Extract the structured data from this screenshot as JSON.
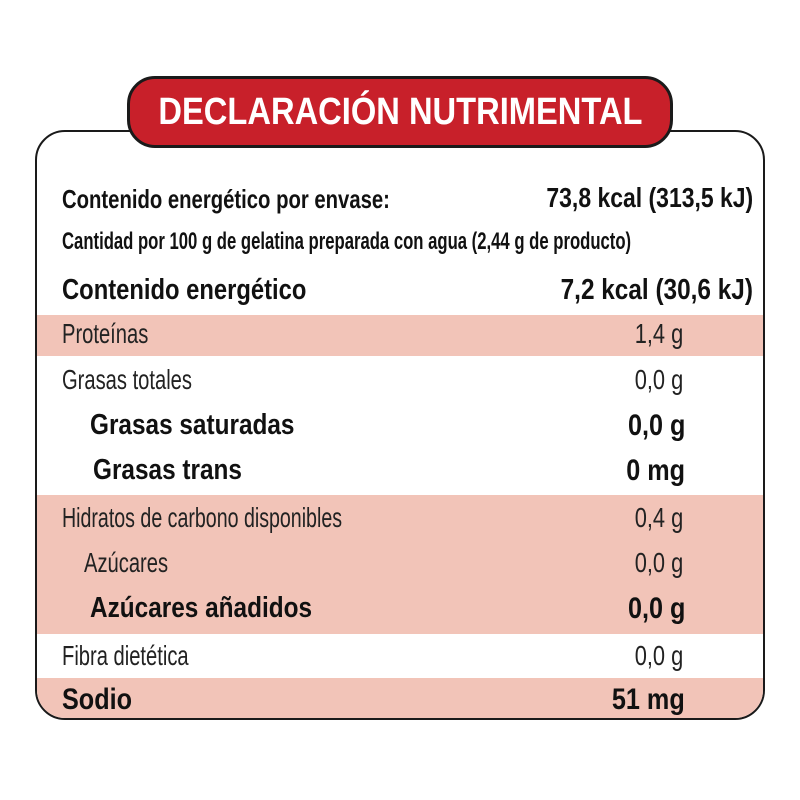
{
  "title": "DECLARACIÓN NUTRIMENTAL",
  "header": {
    "energy_per_container_label": "Contenido energético por envase:",
    "energy_per_container_value": "73,8 kcal (313,5 kJ)",
    "serving_note": "Cantidad por 100 g de gelatina preparada con agua (2,44 g de producto)",
    "energy_label": "Contenido energético",
    "energy_value": "7,2 kcal (30,6 kJ)"
  },
  "rows": [
    {
      "label": "Proteínas",
      "value": "1,4 g",
      "shaded": true,
      "bold": false
    },
    {
      "label": "Grasas totales",
      "value": "0,0 g",
      "shaded": false,
      "bold": false
    },
    {
      "label": "Grasas saturadas",
      "value": "0,0 g",
      "shaded": false,
      "bold": true
    },
    {
      "label": "Grasas trans",
      "value": "0 mg",
      "shaded": false,
      "bold": true
    },
    {
      "label": "Hidratos de carbono disponibles",
      "value": "0,4 g",
      "shaded": true,
      "bold": false
    },
    {
      "label": "Azúcares",
      "value": "0,0 g",
      "shaded": true,
      "bold": false
    },
    {
      "label": "Azúcares añadidos",
      "value": "0,0 g",
      "shaded": true,
      "bold": true
    },
    {
      "label": "Fibra dietética",
      "value": "0,0 g",
      "shaded": false,
      "bold": false
    },
    {
      "label": "Sodio",
      "value": "51 mg",
      "shaded": true,
      "bold": true
    }
  ],
  "colors": {
    "banner": "#c8202a",
    "shade": "#f2c4b8"
  }
}
